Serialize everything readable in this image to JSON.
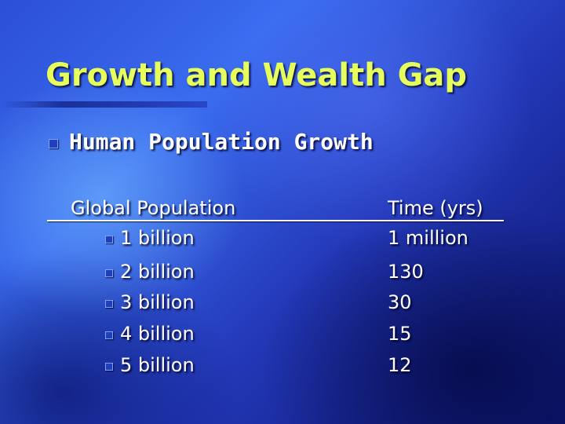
{
  "slide": {
    "title": "Growth and Wealth Gap",
    "heading": "Human Population Growth",
    "table": {
      "col1_header": "Global Population",
      "col2_header": "Time (yrs)",
      "rows": [
        {
          "population": "1 billion",
          "time": "1 million"
        },
        {
          "population": "2 billion",
          "time": "130"
        },
        {
          "population": "3 billion",
          "time": "30"
        },
        {
          "population": "4 billion",
          "time": "15"
        },
        {
          "population": "5 billion",
          "time": "12"
        }
      ]
    }
  },
  "colors": {
    "title": "#e6ff5a",
    "text": "#ffffff",
    "bullet": "#1f3fbf"
  }
}
